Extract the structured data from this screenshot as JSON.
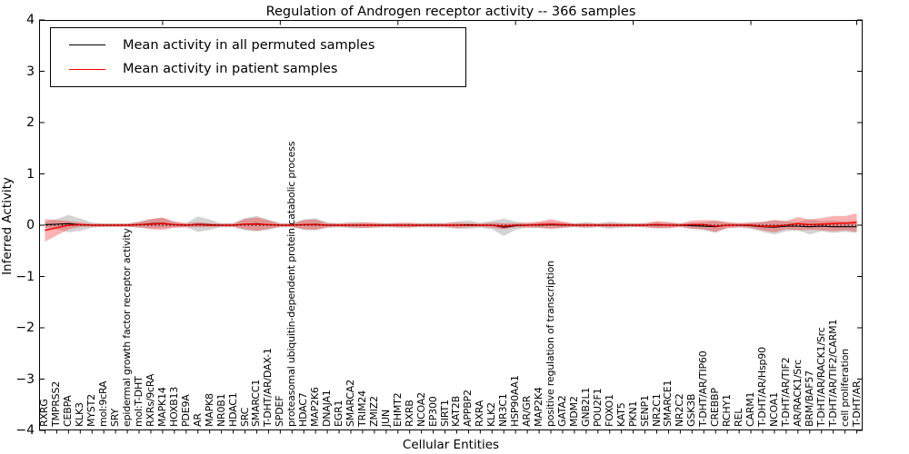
{
  "figure": {
    "title": "Regulation of Androgen receptor activity -- 366 samples",
    "xlabel": "Cellular Entities",
    "ylabel": "Inferred Activity"
  },
  "chart_data": {
    "type": "line",
    "title": "Regulation of Androgen receptor activity -- 366 samples",
    "xlabel": "Cellular Entities",
    "ylabel": "Inferred Activity",
    "ylim": [
      -4,
      4
    ],
    "ytick_labels": [
      "4",
      "3",
      "2",
      "1",
      "0",
      "−1",
      "−2",
      "−3",
      "−4"
    ],
    "grid": false,
    "legend_position": "upper left",
    "zero_line": true,
    "categories": [
      "RXRG",
      "TMPRSS2",
      "CEBPA",
      "KLK3",
      "MYST2",
      "mol:9cRA",
      "SRY",
      "epidermal growth factor receptor activity",
      "mol:T-DHT",
      "RXRs/9cRA",
      "MAPK14",
      "HOXB13",
      "PDE9A",
      "AR",
      "MAPK8",
      "NR0B1",
      "HDAC1",
      "SRC",
      "SMARCC1",
      "T-DHT/AR/DAX-1",
      "SPDEF",
      "proteasomal ubiquitin-dependent protein catabolic process",
      "HDAC7",
      "MAP2K6",
      "DNAJA1",
      "EGR1",
      "SMARCA2",
      "TRIM24",
      "ZMIZ2",
      "JUN",
      "EHMT2",
      "RXRB",
      "NCOA2",
      "EP300",
      "SIRT1",
      "KAT2B",
      "APPBP2",
      "RXRA",
      "KLK2",
      "NR3C1",
      "HSP90AA1",
      "AR/GR",
      "MAP2K4",
      "positive regulation of transcription",
      "GATA2",
      "MDM2",
      "GNB2L1",
      "POU2F1",
      "FOXO1",
      "KAT5",
      "PKN1",
      "SENP1",
      "NR2C1",
      "SMARCE1",
      "NR2C2",
      "GSK3B",
      "T-DHT/AR/TIP60",
      "CREBBP",
      "RCHY1",
      "REL",
      "CARM1",
      "T-DHT/AR/Hsp90",
      "NCOA1",
      "T-DHT/AR/TIF2",
      "AR/RACK1/Src",
      "BRM/BAF57",
      "T-DHT/AR/RACK1/Src",
      "T-DHT/AR/TIF2/CARM1",
      "cell proliferation",
      "T-DHT/AR"
    ],
    "series": [
      {
        "name": "Mean activity in all permuted samples",
        "color": "#000000",
        "band_color": "#808080",
        "band_opacity": 0.35,
        "mean": [
          0.01,
          0.02,
          0.03,
          0.01,
          0,
          0,
          0,
          0,
          0.01,
          0.03,
          0.04,
          0.01,
          0,
          0.02,
          0.01,
          0,
          0,
          0.02,
          0.03,
          0.01,
          0,
          0,
          0.01,
          0.02,
          0,
          0,
          0,
          0,
          0,
          0,
          0,
          0,
          0,
          0,
          0,
          0,
          0.01,
          0,
          0,
          -0.04,
          -0.01,
          0,
          0,
          0.01,
          0,
          0,
          0,
          0,
          0,
          0,
          0,
          0,
          0,
          0,
          0,
          -0.01,
          -0.02,
          -0.03,
          0,
          0,
          -0.01,
          -0.03,
          -0.04,
          -0.02,
          -0.02,
          -0.03,
          -0.02,
          -0.03,
          -0.03,
          -0.03
        ],
        "std": [
          0.06,
          0.1,
          0.17,
          0.12,
          0.05,
          0.03,
          0.03,
          0.03,
          0.06,
          0.09,
          0.1,
          0.05,
          0.04,
          0.15,
          0.1,
          0.04,
          0.04,
          0.12,
          0.15,
          0.1,
          0.04,
          0.04,
          0.1,
          0.12,
          0.05,
          0.04,
          0.06,
          0.06,
          0.04,
          0.04,
          0.05,
          0.04,
          0.04,
          0.05,
          0.04,
          0.07,
          0.08,
          0.05,
          0.08,
          0.17,
          0.08,
          0.04,
          0.05,
          0.06,
          0.05,
          0.04,
          0.06,
          0.04,
          0.07,
          0.05,
          0.04,
          0.04,
          0.06,
          0.05,
          0.04,
          0.06,
          0.08,
          0.12,
          0.05,
          0.04,
          0.06,
          0.1,
          0.14,
          0.1,
          0.08,
          0.15,
          0.1,
          0.12,
          0.1,
          0.12
        ]
      },
      {
        "name": "Mean activity in patient samples",
        "color": "#ff0000",
        "band_color": "#ff0000",
        "band_opacity": 0.3,
        "mean": [
          -0.1,
          -0.05,
          0,
          0.01,
          0,
          0,
          0,
          0,
          0.01,
          0.02,
          0.03,
          0.01,
          0,
          0.01,
          0,
          0,
          0,
          0.02,
          0.02,
          0.01,
          0,
          0,
          0.01,
          0.01,
          0,
          0,
          0,
          0,
          0,
          0,
          0,
          0,
          0,
          0,
          0,
          0,
          0,
          0,
          0,
          -0.02,
          0,
          0,
          0.01,
          0.02,
          0.01,
          0,
          0,
          0,
          0,
          0,
          0,
          0,
          0.01,
          0,
          0,
          0.01,
          0.01,
          -0.02,
          0,
          0,
          0,
          -0.02,
          -0.02,
          0,
          0.03,
          0.01,
          0.02,
          0.03,
          0.04,
          0.05
        ],
        "std": [
          0.22,
          0.15,
          0.08,
          0.04,
          0.03,
          0.03,
          0.03,
          0.03,
          0.05,
          0.1,
          0.12,
          0.06,
          0.04,
          0.05,
          0.04,
          0.03,
          0.03,
          0.1,
          0.13,
          0.08,
          0.03,
          0.03,
          0.09,
          0.1,
          0.04,
          0.03,
          0.04,
          0.05,
          0.05,
          0.03,
          0.04,
          0.05,
          0.03,
          0.03,
          0.04,
          0.05,
          0.04,
          0.03,
          0.05,
          0.06,
          0.04,
          0.05,
          0.06,
          0.1,
          0.06,
          0.03,
          0.04,
          0.03,
          0.04,
          0.03,
          0.03,
          0.04,
          0.07,
          0.06,
          0.03,
          0.08,
          0.09,
          0.11,
          0.06,
          0.04,
          0.05,
          0.08,
          0.12,
          0.08,
          0.13,
          0.1,
          0.12,
          0.15,
          0.14,
          0.18
        ]
      }
    ]
  }
}
